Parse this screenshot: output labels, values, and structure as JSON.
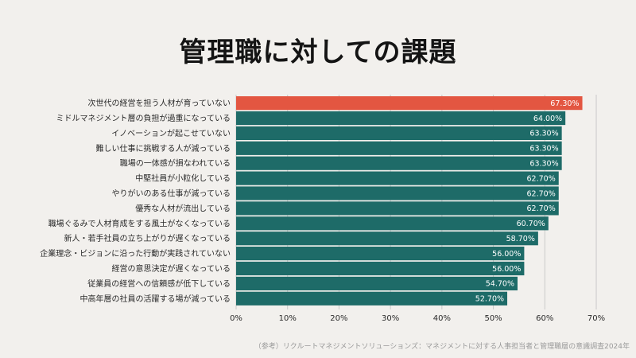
{
  "colors": {
    "background": "#f2f0ed",
    "highlight": "#e35641",
    "bar": "#1e6b68",
    "grid": "#c9c9c9"
  },
  "chart_data": {
    "type": "bar",
    "orientation": "horizontal",
    "title": "管理職に対しての課題",
    "categories": [
      "次世代の経営を担う人材が育っていない",
      "ミドルマネジメント層の負担が過重になっている",
      "イノベーションが起こせていない",
      "難しい仕事に挑戦する人が減っている",
      "職場の一体感が損なわれている",
      "中堅社員が小粒化している",
      "やりがいのある仕事が減っている",
      "優秀な人材が流出している",
      "職場ぐるみで人材育成をする風土がなくなっている",
      "新人・若手社員の立ち上がりが遅くなっている",
      "企業理念・ビジョンに沿った行動が実践されていない",
      "経営の意思決定が遅くなっている",
      "従業員の経営への信頼感が低下している",
      "中高年層の社員の活躍する場が減っている"
    ],
    "values": [
      67.3,
      64.0,
      63.3,
      63.3,
      63.3,
      62.7,
      62.7,
      62.7,
      60.7,
      58.7,
      56.0,
      56.0,
      54.7,
      52.7
    ],
    "value_labels": [
      "67.30%",
      "64.00%",
      "63.30%",
      "63.30%",
      "63.30%",
      "62.70%",
      "62.70%",
      "62.70%",
      "60.70%",
      "58.70%",
      "56.00%",
      "56.00%",
      "54.70%",
      "52.70%"
    ],
    "xlim": [
      0,
      70
    ],
    "xticks": [
      "0%",
      "10%",
      "20%",
      "30%",
      "40%",
      "50%",
      "60%",
      "70%"
    ],
    "highlight_index": 0,
    "grid": true,
    "xlabel": "",
    "ylabel": ""
  },
  "source": "（参考）リクルートマネジメントソリューションズ：マネジメントに対する人事担当者と管理職層の意識調査2024年"
}
